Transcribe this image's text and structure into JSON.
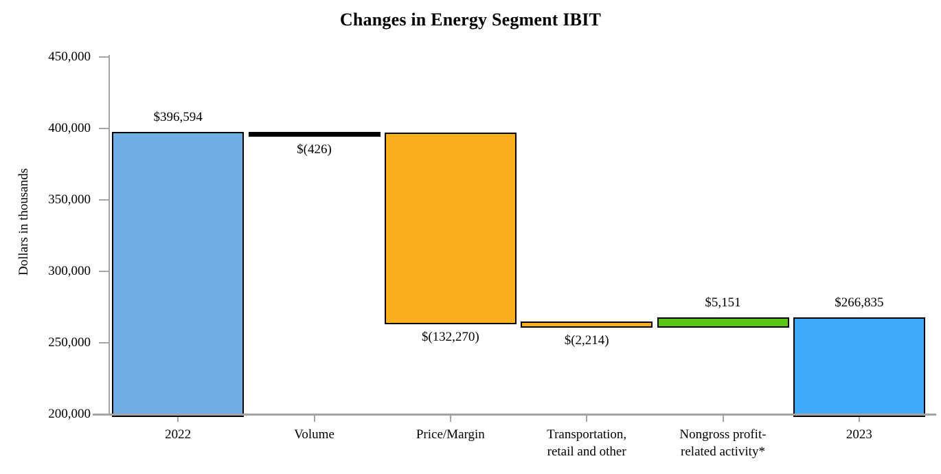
{
  "title": "Changes in Energy Segment IBIT",
  "chart_data": {
    "type": "bar",
    "subtype": "waterfall",
    "title": "Changes in Energy Segment IBIT",
    "xlabel": "",
    "ylabel": "Dollars in thousands",
    "ylim": [
      200000,
      450000
    ],
    "ytick_step": 50000,
    "yticks": [
      "450,000",
      "400,000",
      "350,000",
      "300,000",
      "250,000",
      "200,000"
    ],
    "grid": false,
    "legend": "none",
    "categories": [
      "2022",
      "Volume",
      "Price/Margin",
      "Transportation, retail and other",
      "Nongross profit-related activity*",
      "2023"
    ],
    "bars": [
      {
        "category": "2022",
        "label_lines": [
          "2022"
        ],
        "kind": "total",
        "value": 396594,
        "data_label": "$396,594",
        "label_position": "above",
        "color": "#6FAFE3"
      },
      {
        "category": "Volume",
        "label_lines": [
          "Volume"
        ],
        "kind": "delta",
        "value": -426,
        "data_label": "$(426)",
        "label_position": "below",
        "color": "#000000"
      },
      {
        "category": "Price/Margin",
        "label_lines": [
          "Price/Margin"
        ],
        "kind": "delta",
        "value": -132270,
        "data_label": "$(132,270)",
        "label_position": "below",
        "color": "#F9AE1B"
      },
      {
        "category": "Transportation, retail and other",
        "label_lines": [
          "Transportation,",
          "retail and other"
        ],
        "kind": "delta",
        "value": -2214,
        "data_label": "$(2,214)",
        "label_position": "below",
        "color": "#F9AE1B"
      },
      {
        "category": "Nongross profit-related activity*",
        "label_lines": [
          "Nongross profit-",
          "related activity*"
        ],
        "kind": "delta",
        "value": 5151,
        "data_label": "$5,151",
        "label_position": "above",
        "color": "#5BC515"
      },
      {
        "category": "2023",
        "label_lines": [
          "2023"
        ],
        "kind": "total",
        "value": 266835,
        "data_label": "$266,835",
        "label_position": "above",
        "color": "#3FA9FA"
      }
    ],
    "colors": {
      "start_total": "#6FAFE3",
      "end_total": "#3FA9FA",
      "decrease": "#F9AE1B",
      "increase": "#5BC515",
      "tiny_decrease": "#000000",
      "axis": "#a3a3a3",
      "bar_border": "#000000",
      "text": "#000000"
    }
  }
}
